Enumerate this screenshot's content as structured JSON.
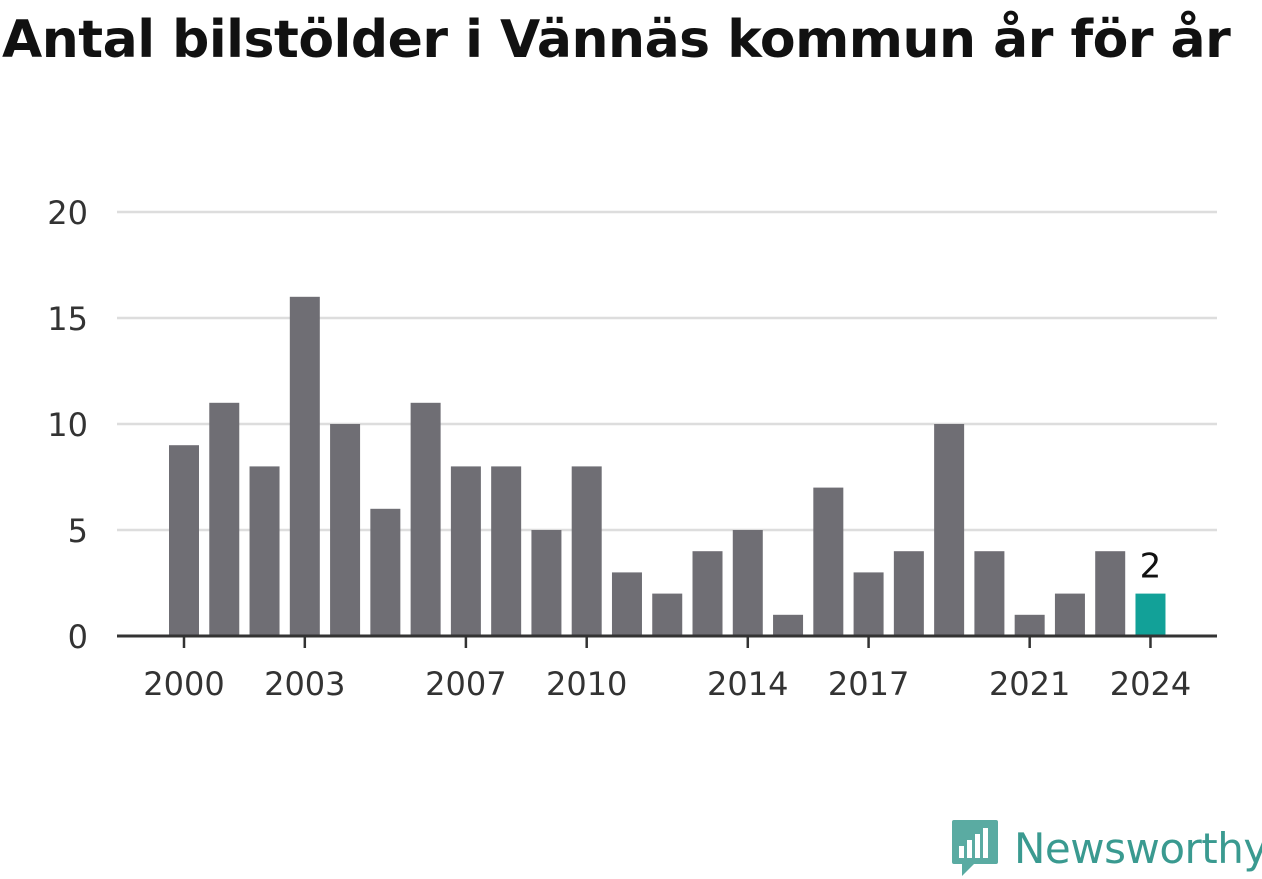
{
  "chart_data": {
    "type": "bar",
    "title": "Antal bilstölder i Vännäs kommun år för år",
    "xlabel": "",
    "ylabel": "",
    "categories": [
      "2000",
      "2001",
      "2002",
      "2003",
      "2004",
      "2005",
      "2006",
      "2007",
      "2008",
      "2009",
      "2010",
      "2011",
      "2012",
      "2013",
      "2014",
      "2015",
      "2016",
      "2017",
      "2018",
      "2019",
      "2020",
      "2021",
      "2022",
      "2023",
      "2024"
    ],
    "values": [
      9,
      11,
      8,
      16,
      10,
      6,
      11,
      8,
      8,
      5,
      8,
      3,
      2,
      4,
      5,
      1,
      7,
      3,
      4,
      10,
      4,
      1,
      2,
      4,
      2
    ],
    "x_tick_labels": [
      "2000",
      "2003",
      "2007",
      "2010",
      "2014",
      "2017",
      "2021",
      "2024"
    ],
    "y_ticks": [
      0,
      5,
      10,
      15,
      20
    ],
    "ylim": [
      0,
      20
    ],
    "grid": true,
    "highlight": {
      "category": "2024",
      "label": "2"
    },
    "colors": {
      "bar": "#6f6e74",
      "highlight": "#12a198",
      "grid": "#dddddd",
      "axis": "#333333",
      "text": "#333333"
    }
  },
  "brand": {
    "name": "Newsworthy",
    "color": "#3a9a90",
    "icon": "newsworthy-logo-icon"
  }
}
